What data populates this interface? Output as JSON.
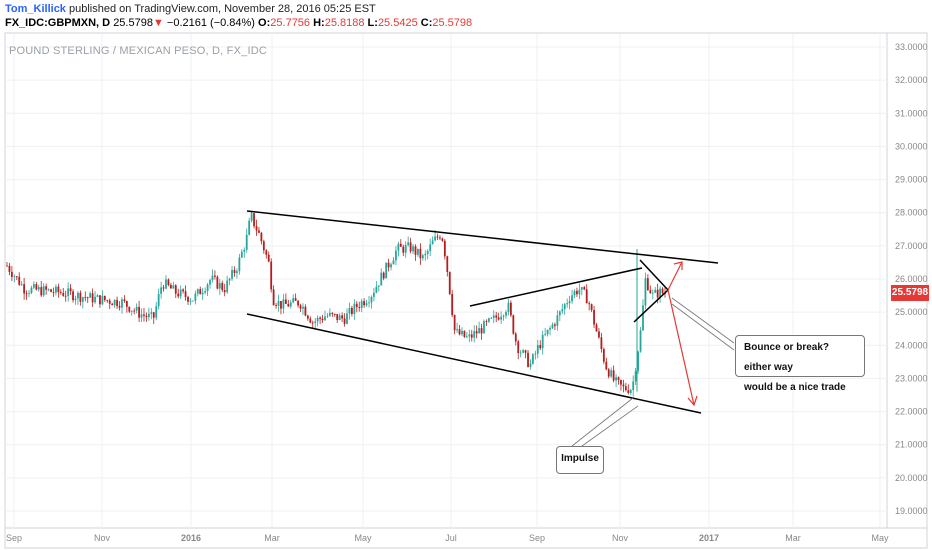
{
  "header": {
    "author": "Tom_Killick",
    "published_text": " published on TradingView.com, November 28, 2016 05:25 EST",
    "symbol": "FX_IDC:GBPMXN, D",
    "last": "25.5798",
    "change_arrow": "▼",
    "change": "−0.2161 (−0.84%)",
    "o_label": "O:",
    "o_value": "25.7756",
    "h_label": "H:",
    "h_value": "25.8188",
    "l_label": "L:",
    "l_value": "25.5425",
    "c_label": "C:",
    "c_value": "25.5798"
  },
  "colors": {
    "up": "#26a69a",
    "down": "#b71c1c",
    "accent_red": "#e53935",
    "grid": "#eef0f3",
    "axis_text": "#888888"
  },
  "chart_data": {
    "type": "candlestick",
    "title": "POUND STERLING / MEXICAN PESO, D, FX_IDC",
    "ylim": [
      18.6,
      33.3
    ],
    "ylabel": "",
    "xlabel": "",
    "y_ticks": [
      "33.0000",
      "32.0000",
      "31.0000",
      "30.0000",
      "29.0000",
      "28.0000",
      "27.0000",
      "26.0000",
      "25.0000",
      "24.0000",
      "23.0000",
      "22.0000",
      "21.0000",
      "20.0000",
      "19.0000"
    ],
    "x_ticks": [
      "Sep",
      "Nov",
      "2016",
      "Mar",
      "May",
      "Jul",
      "Sep",
      "Nov",
      "2017",
      "Mar",
      "May"
    ],
    "last_price": "25.5798",
    "price_path": [
      [
        0,
        26.4
      ],
      [
        0.02,
        25.7
      ],
      [
        0.06,
        25.6
      ],
      [
        0.1,
        25.4
      ],
      [
        0.13,
        25.3
      ],
      [
        0.15,
        24.95
      ],
      [
        0.165,
        24.8
      ],
      [
        0.175,
        25.9
      ],
      [
        0.19,
        25.6
      ],
      [
        0.21,
        25.4
      ],
      [
        0.23,
        26.0
      ],
      [
        0.245,
        25.7
      ],
      [
        0.26,
        26.4
      ],
      [
        0.27,
        27.2
      ],
      [
        0.275,
        27.9
      ],
      [
        0.285,
        27.3
      ],
      [
        0.295,
        26.5
      ],
      [
        0.3,
        25.4
      ],
      [
        0.31,
        25.2
      ],
      [
        0.33,
        25.3
      ],
      [
        0.345,
        24.7
      ],
      [
        0.36,
        24.9
      ],
      [
        0.38,
        24.8
      ],
      [
        0.395,
        25.2
      ],
      [
        0.41,
        25.5
      ],
      [
        0.425,
        26.2
      ],
      [
        0.44,
        26.9
      ],
      [
        0.455,
        26.95
      ],
      [
        0.47,
        26.6
      ],
      [
        0.48,
        27.1
      ],
      [
        0.49,
        27.4
      ],
      [
        0.495,
        26.6
      ],
      [
        0.505,
        24.4
      ],
      [
        0.52,
        24.2
      ],
      [
        0.535,
        24.5
      ],
      [
        0.55,
        24.8
      ],
      [
        0.565,
        25.2
      ],
      [
        0.575,
        24.0
      ],
      [
        0.59,
        23.4
      ],
      [
        0.6,
        24.0
      ],
      [
        0.62,
        24.8
      ],
      [
        0.635,
        25.5
      ],
      [
        0.645,
        25.7
      ],
      [
        0.655,
        25.4
      ],
      [
        0.665,
        24.4
      ],
      [
        0.675,
        23.4
      ],
      [
        0.685,
        22.9
      ],
      [
        0.695,
        22.7
      ],
      [
        0.705,
        22.7
      ],
      [
        0.715,
        24.5
      ],
      [
        0.72,
        26.0
      ],
      [
        0.728,
        25.5
      ],
      [
        0.735,
        25.6
      ],
      [
        0.742,
        25.58
      ]
    ],
    "annotations": [
      {
        "type": "trendline",
        "label": "channel-top",
        "points": [
          [
            0.275,
            28.0
          ],
          [
            0.808,
            26.6
          ]
        ]
      },
      {
        "type": "trendline",
        "label": "channel-bottom",
        "points": [
          [
            0.275,
            25.3
          ],
          [
            0.785,
            21.9
          ]
        ]
      },
      {
        "type": "trendline",
        "label": "inner-rising",
        "points": [
          [
            0.53,
            25.3
          ],
          [
            0.73,
            26.4
          ]
        ]
      },
      {
        "type": "text",
        "label": "callout-bounce",
        "text_lines": [
          "Bounce or break? either way",
          "would be a nice trade"
        ]
      },
      {
        "type": "text",
        "label": "callout-impulse",
        "text": "Impulse"
      }
    ]
  }
}
